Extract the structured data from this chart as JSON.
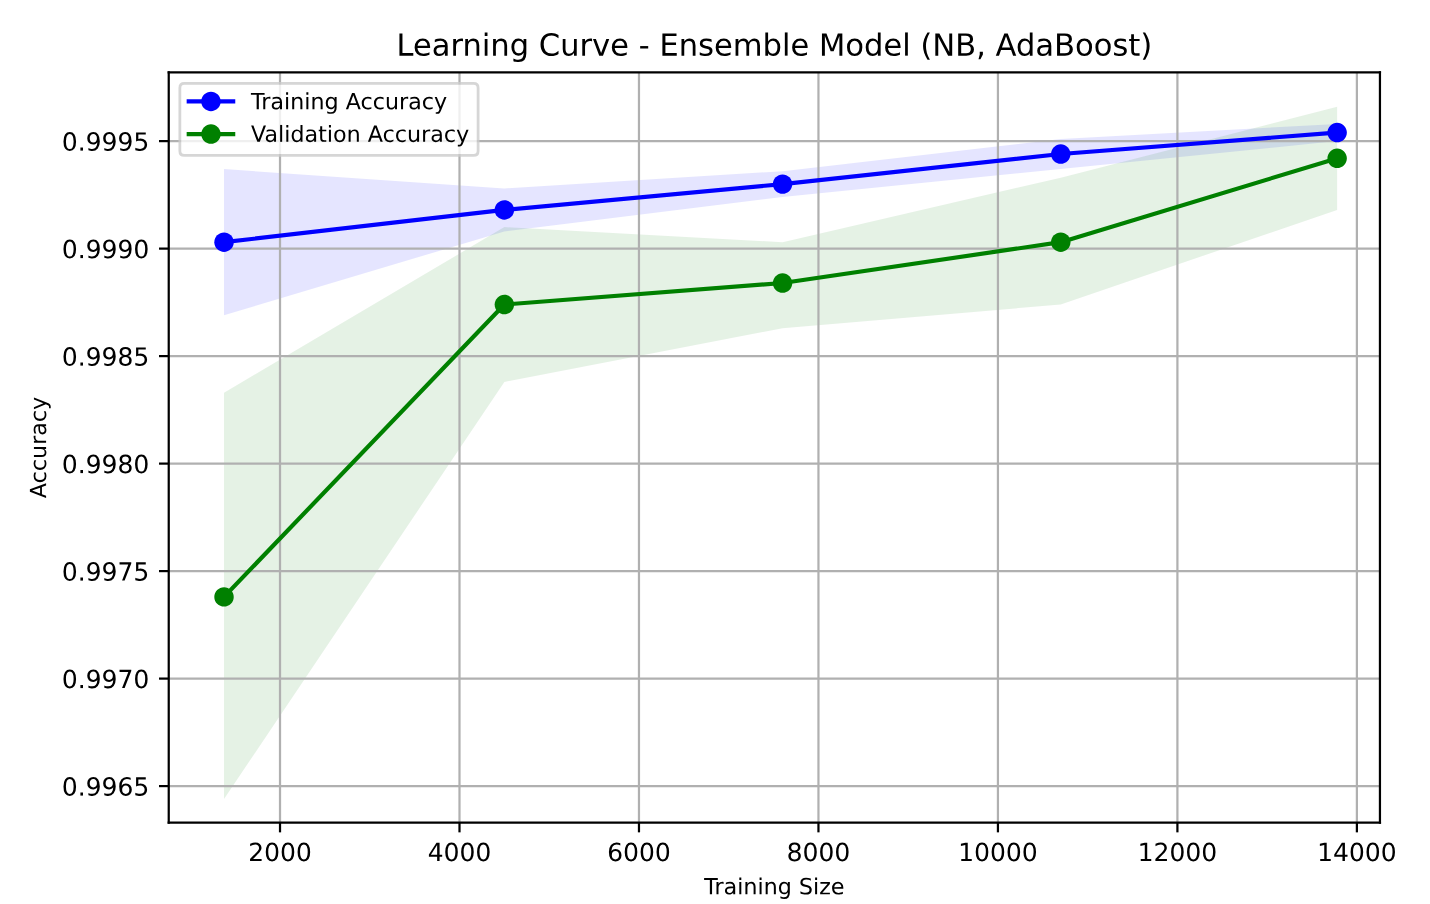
{
  "chart_data": {
    "type": "line",
    "title": "Learning Curve - Ensemble Model (NB, AdaBoost)",
    "xlabel": "Training Size",
    "ylabel": "Accuracy",
    "x": [
      1376,
      4500,
      7600,
      10700,
      13780
    ],
    "series": [
      {
        "name": "Training Accuracy",
        "color": "#0000ff",
        "values": [
          0.99903,
          0.99918,
          0.9993,
          0.99944,
          0.99954
        ],
        "lower": [
          0.99869,
          0.99908,
          0.99924,
          0.99937,
          0.9995
        ],
        "upper": [
          0.99937,
          0.99928,
          0.99936,
          0.99951,
          0.99958
        ]
      },
      {
        "name": "Validation Accuracy",
        "color": "#008000",
        "values": [
          0.99738,
          0.99874,
          0.99884,
          0.99903,
          0.99942
        ],
        "lower": [
          0.99644,
          0.99838,
          0.99863,
          0.99874,
          0.99918
        ],
        "upper": [
          0.99833,
          0.9991,
          0.99903,
          0.99933,
          0.99966
        ]
      }
    ],
    "xlim": [
      760,
      14257
    ],
    "ylim": [
      0.99633,
      0.99982
    ],
    "xticks": [
      2000,
      4000,
      6000,
      8000,
      10000,
      12000,
      14000
    ],
    "yticks": [
      {
        "value": 0.9965,
        "label": "0.9965"
      },
      {
        "value": 0.997,
        "label": "0.9970"
      },
      {
        "value": 0.9975,
        "label": "0.9975"
      },
      {
        "value": 0.998,
        "label": "0.9980"
      },
      {
        "value": 0.9985,
        "label": "0.9985"
      },
      {
        "value": 0.999,
        "label": "0.9990"
      },
      {
        "value": 0.9995,
        "label": "0.9995"
      }
    ],
    "grid": true,
    "legend": "top left",
    "marker": "circle",
    "line_style": "solid"
  }
}
